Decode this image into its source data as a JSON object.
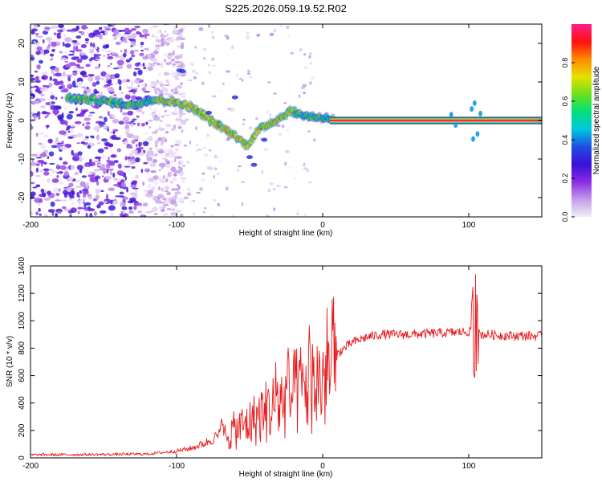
{
  "title": "S225.2026.059.19.52.R02",
  "chart_data": [
    {
      "id": "spectrogram",
      "type": "heatmap",
      "xlabel": "Height of straight line (km)",
      "ylabel": "Frequency (Hz)",
      "xlim": [
        -200,
        150
      ],
      "ylim": [
        -25,
        25
      ],
      "xticks": [
        -200,
        -100,
        0,
        100
      ],
      "xtick_labels": [
        "-200",
        "-100",
        "0",
        "100"
      ],
      "yticks": [
        -20,
        -10,
        0,
        10,
        20
      ],
      "ytick_labels": [
        "-20",
        "-10",
        "0",
        "10",
        "20"
      ],
      "colorbar": {
        "label": "Normalized spectral amplitude",
        "range": [
          0,
          1
        ],
        "ticks": [
          0,
          0.2,
          0.4,
          0.6,
          0.8
        ],
        "tick_labels": [
          "0.0",
          "0.2",
          "0.4",
          "0.6",
          "0.8"
        ],
        "colors": [
          "#f2eef9",
          "#c49ce9",
          "#8a2be2",
          "#3a10d8",
          "#1f4fe0",
          "#00c8e0",
          "#00e07a",
          "#6ee01a",
          "#e6e000",
          "#ff8a00",
          "#ff1010",
          "#ff1e8c"
        ]
      },
      "ridge": {
        "description_free": true,
        "x": [
          -175,
          -160,
          -145,
          -130,
          -118,
          -108,
          -98,
          -90,
          -82,
          -75,
          -68,
          -60,
          -52,
          -45,
          -38,
          -30,
          -22,
          -15,
          -8,
          0,
          8
        ],
        "y": [
          5.8,
          5.5,
          4.8,
          4.0,
          5.5,
          5.2,
          4.5,
          3.5,
          1.5,
          -0.5,
          -2.0,
          -4.0,
          -6.5,
          -3.0,
          -1.0,
          0.5,
          2.5,
          1.5,
          1.0,
          0.8,
          0.3
        ]
      },
      "carrier": {
        "x_start": 5,
        "x_end": 150,
        "y": 0
      },
      "noise_region": {
        "x_start": -200,
        "x_end": -120
      }
    },
    {
      "id": "snr",
      "type": "line",
      "xlabel": "Height of straight line (km)",
      "ylabel": "SNR (10 * v/v)",
      "xlim": [
        -200,
        150
      ],
      "ylim": [
        0,
        1400
      ],
      "xticks": [
        -200,
        -100,
        0,
        100
      ],
      "xtick_labels": [
        "-200",
        "-100",
        "0",
        "100"
      ],
      "yticks": [
        0,
        200,
        400,
        600,
        800,
        1000,
        1200,
        1400
      ],
      "ytick_labels": [
        "0",
        "200",
        "400",
        "600",
        "800",
        "1000",
        "1200",
        "1400"
      ],
      "color": "#e8191b",
      "trend": {
        "x": [
          -200,
          -150,
          -120,
          -100,
          -90,
          -80,
          -70,
          -60,
          -50,
          -40,
          -30,
          -20,
          -10,
          0,
          10,
          20,
          30,
          40,
          60,
          80,
          100,
          110,
          130,
          150
        ],
        "y": [
          22,
          25,
          28,
          50,
          70,
          110,
          170,
          230,
          290,
          380,
          450,
          530,
          600,
          650,
          760,
          840,
          880,
          900,
          900,
          910,
          920,
          900,
          890,
          890
        ]
      },
      "spike": {
        "x": 104,
        "peak": 1420,
        "trough": 560
      }
    }
  ]
}
